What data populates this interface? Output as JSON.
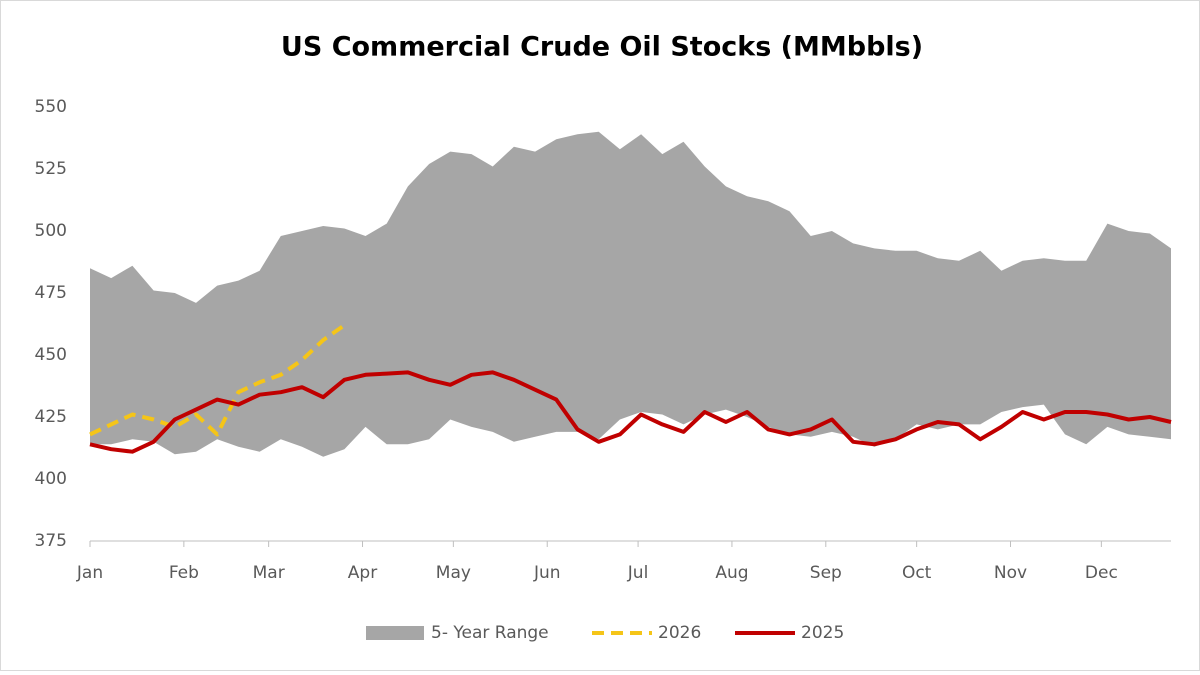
{
  "chart_data": {
    "type": "line",
    "title": "US Commercial Crude Oil Stocks (MMbbls)",
    "x": [
      1,
      8,
      15,
      22,
      29,
      36,
      43,
      50,
      57,
      64,
      71,
      78,
      85,
      92,
      99,
      106,
      113,
      120,
      127,
      134,
      141,
      148,
      155,
      162,
      169,
      176,
      183,
      190,
      197,
      204,
      211,
      218,
      225,
      232,
      239,
      246,
      253,
      260,
      267,
      274,
      281,
      288,
      295,
      302,
      309,
      316,
      323,
      330,
      337,
      344,
      351,
      358
    ],
    "xlim": [
      1,
      358
    ],
    "xticks": [
      {
        "value": 1,
        "label": "Jan"
      },
      {
        "value": 32,
        "label": "Feb"
      },
      {
        "value": 60,
        "label": "Mar"
      },
      {
        "value": 91,
        "label": "Apr"
      },
      {
        "value": 121,
        "label": "May"
      },
      {
        "value": 152,
        "label": "Jun"
      },
      {
        "value": 182,
        "label": "Jul"
      },
      {
        "value": 213,
        "label": "Aug"
      },
      {
        "value": 244,
        "label": "Sep"
      },
      {
        "value": 274,
        "label": "Oct"
      },
      {
        "value": 305,
        "label": "Nov"
      },
      {
        "value": 335,
        "label": "Dec"
      }
    ],
    "ylim": [
      375,
      550
    ],
    "yticks": [
      375,
      400,
      425,
      450,
      475,
      500,
      525,
      550
    ],
    "legend": "bottom",
    "range": {
      "name": "5- Year Range",
      "color": "#a6a6a6",
      "high": [
        485,
        481,
        486,
        476,
        475,
        471,
        478,
        480,
        484,
        498,
        500,
        502,
        501,
        498,
        503,
        518,
        527,
        532,
        531,
        526,
        534,
        532,
        537,
        539,
        540,
        533,
        539,
        531,
        536,
        526,
        518,
        514,
        512,
        508,
        498,
        500,
        495,
        493,
        492,
        492,
        489,
        488,
        492,
        484,
        488,
        489,
        488,
        488,
        503,
        500,
        499,
        493
      ],
      "low": [
        414,
        414,
        416,
        415,
        410,
        411,
        416,
        413,
        411,
        416,
        413,
        409,
        412,
        421,
        414,
        414,
        416,
        424,
        421,
        419,
        415,
        417,
        419,
        419,
        416,
        424,
        427,
        426,
        422,
        426,
        428,
        425,
        421,
        418,
        417,
        419,
        417,
        413,
        416,
        422,
        420,
        422,
        422,
        427,
        429,
        430,
        418,
        414,
        421,
        418,
        417,
        416
      ]
    },
    "series": [
      {
        "name": "2026",
        "color": "#f5c518",
        "dashed": true,
        "values": [
          418,
          422,
          426,
          424,
          421,
          426,
          418,
          435,
          439,
          442,
          448,
          456,
          462,
          null,
          null,
          null,
          null,
          null,
          null,
          null,
          null,
          null,
          null,
          null,
          null,
          null,
          null,
          null,
          null,
          null,
          null,
          null,
          null,
          null,
          null,
          null,
          null,
          null,
          null,
          null,
          null,
          null,
          null,
          null,
          null,
          null,
          null,
          null,
          null,
          null,
          null,
          null
        ]
      },
      {
        "name": "2025",
        "color": "#c00000",
        "dashed": false,
        "values": [
          414,
          412,
          411,
          415,
          424,
          428,
          432,
          430,
          434,
          435,
          437,
          433,
          440,
          442,
          442.5,
          443,
          440,
          438,
          442,
          443,
          440,
          436,
          432,
          420,
          415,
          418,
          426,
          422,
          419,
          427,
          423,
          427,
          420,
          418,
          420,
          424,
          415,
          414,
          416,
          420,
          423,
          422,
          416,
          421,
          427,
          424,
          427,
          427,
          426,
          424,
          425,
          423
        ]
      }
    ]
  }
}
